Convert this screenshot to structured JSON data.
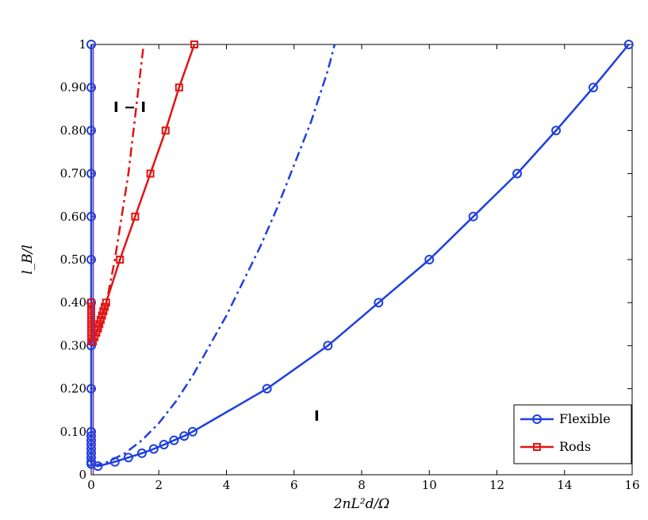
{
  "chart_data": {
    "type": "line",
    "xlabel": "2nL²d/Ω",
    "ylabel": "l_B/l",
    "xlim": [
      0,
      16
    ],
    "ylim": [
      0,
      1
    ],
    "x_ticks": [
      "0",
      "2",
      "4",
      "6",
      "8",
      "10",
      "12",
      "14",
      "16"
    ],
    "y_ticks": [
      "0",
      "0.10",
      "0.20",
      "0.30",
      "0.40",
      "0.50",
      "0.60",
      "0.70",
      "0.80",
      "0.90",
      "1"
    ],
    "grid": false,
    "legend_position": "bottom-right",
    "annotations": [
      {
        "text": "I − I",
        "x": 0.65,
        "y": 0.855
      },
      {
        "text": "I",
        "x": 6.65,
        "y": 0.135
      }
    ],
    "series": [
      {
        "name": "Flexible",
        "color": "#1f3fe0",
        "marker": "circle",
        "style": "solid",
        "points": [
          [
            0,
            1.0
          ],
          [
            0,
            0.9
          ],
          [
            0,
            0.8
          ],
          [
            0,
            0.7
          ],
          [
            0,
            0.6
          ],
          [
            0,
            0.5
          ],
          [
            0,
            0.4
          ],
          [
            0,
            0.3
          ],
          [
            0,
            0.2
          ],
          [
            0,
            0.1
          ],
          [
            0,
            0.09
          ],
          [
            0,
            0.08
          ],
          [
            0,
            0.07
          ],
          [
            0,
            0.06
          ],
          [
            0,
            0.05
          ],
          [
            0,
            0.04
          ],
          [
            0,
            0.03
          ],
          [
            0,
            0.025
          ],
          [
            0.2,
            0.02
          ],
          [
            0.7,
            0.03
          ],
          [
            1.1,
            0.04
          ],
          [
            1.5,
            0.05
          ],
          [
            1.85,
            0.06
          ],
          [
            2.15,
            0.07
          ],
          [
            2.45,
            0.08
          ],
          [
            2.75,
            0.09
          ],
          [
            3.0,
            0.1
          ],
          [
            5.2,
            0.2
          ],
          [
            7.0,
            0.3
          ],
          [
            8.5,
            0.4
          ],
          [
            10.0,
            0.5
          ],
          [
            11.3,
            0.6
          ],
          [
            12.6,
            0.7
          ],
          [
            13.75,
            0.8
          ],
          [
            14.85,
            0.9
          ],
          [
            15.9,
            1.0
          ]
        ]
      },
      {
        "name": "Rods",
        "color": "#e01515",
        "marker": "square",
        "style": "solid",
        "points": [
          [
            0,
            0.31
          ],
          [
            0,
            0.32
          ],
          [
            0,
            0.33
          ],
          [
            0,
            0.34
          ],
          [
            0,
            0.35
          ],
          [
            0,
            0.36
          ],
          [
            0,
            0.37
          ],
          [
            0,
            0.38
          ],
          [
            0,
            0.39
          ],
          [
            0,
            0.4
          ],
          [
            0.05,
            0.31
          ],
          [
            0.1,
            0.32
          ],
          [
            0.15,
            0.33
          ],
          [
            0.2,
            0.34
          ],
          [
            0.24,
            0.35
          ],
          [
            0.28,
            0.36
          ],
          [
            0.32,
            0.37
          ],
          [
            0.36,
            0.38
          ],
          [
            0.4,
            0.39
          ],
          [
            0.44,
            0.4
          ],
          [
            0.85,
            0.5
          ],
          [
            1.3,
            0.6
          ],
          [
            1.75,
            0.7
          ],
          [
            2.2,
            0.8
          ],
          [
            2.6,
            0.9
          ],
          [
            3.05,
            1.0
          ]
        ]
      },
      {
        "name": "",
        "color": "#1f3fe0",
        "marker": "none",
        "style": "dash-dot",
        "points": [
          [
            0.05,
            0.02
          ],
          [
            0.5,
            0.03
          ],
          [
            1.0,
            0.05
          ],
          [
            1.5,
            0.08
          ],
          [
            2.0,
            0.12
          ],
          [
            2.5,
            0.17
          ],
          [
            3.0,
            0.23
          ],
          [
            3.5,
            0.3
          ],
          [
            4.0,
            0.37
          ],
          [
            4.5,
            0.45
          ],
          [
            5.0,
            0.53
          ],
          [
            5.5,
            0.62
          ],
          [
            6.0,
            0.72
          ],
          [
            6.5,
            0.82
          ],
          [
            7.0,
            0.94
          ],
          [
            7.2,
            1.0
          ]
        ]
      },
      {
        "name": "",
        "color": "#e01515",
        "marker": "none",
        "style": "dash-dot",
        "points": [
          [
            0.25,
            0.33
          ],
          [
            0.35,
            0.37
          ],
          [
            0.5,
            0.42
          ],
          [
            0.7,
            0.5
          ],
          [
            0.9,
            0.6
          ],
          [
            1.1,
            0.7
          ],
          [
            1.25,
            0.8
          ],
          [
            1.4,
            0.9
          ],
          [
            1.55,
            1.0
          ]
        ]
      },
      {
        "name": "",
        "color": "#6a3fb0",
        "marker": "none",
        "style": "solid",
        "points": [
          [
            0.06,
            0.0
          ],
          [
            0.06,
            1.0
          ]
        ]
      }
    ]
  },
  "legend": {
    "items": [
      {
        "label": "Flexible",
        "color": "#1f3fe0",
        "marker": "circle"
      },
      {
        "label": "Rods",
        "color": "#e01515",
        "marker": "square"
      }
    ]
  }
}
